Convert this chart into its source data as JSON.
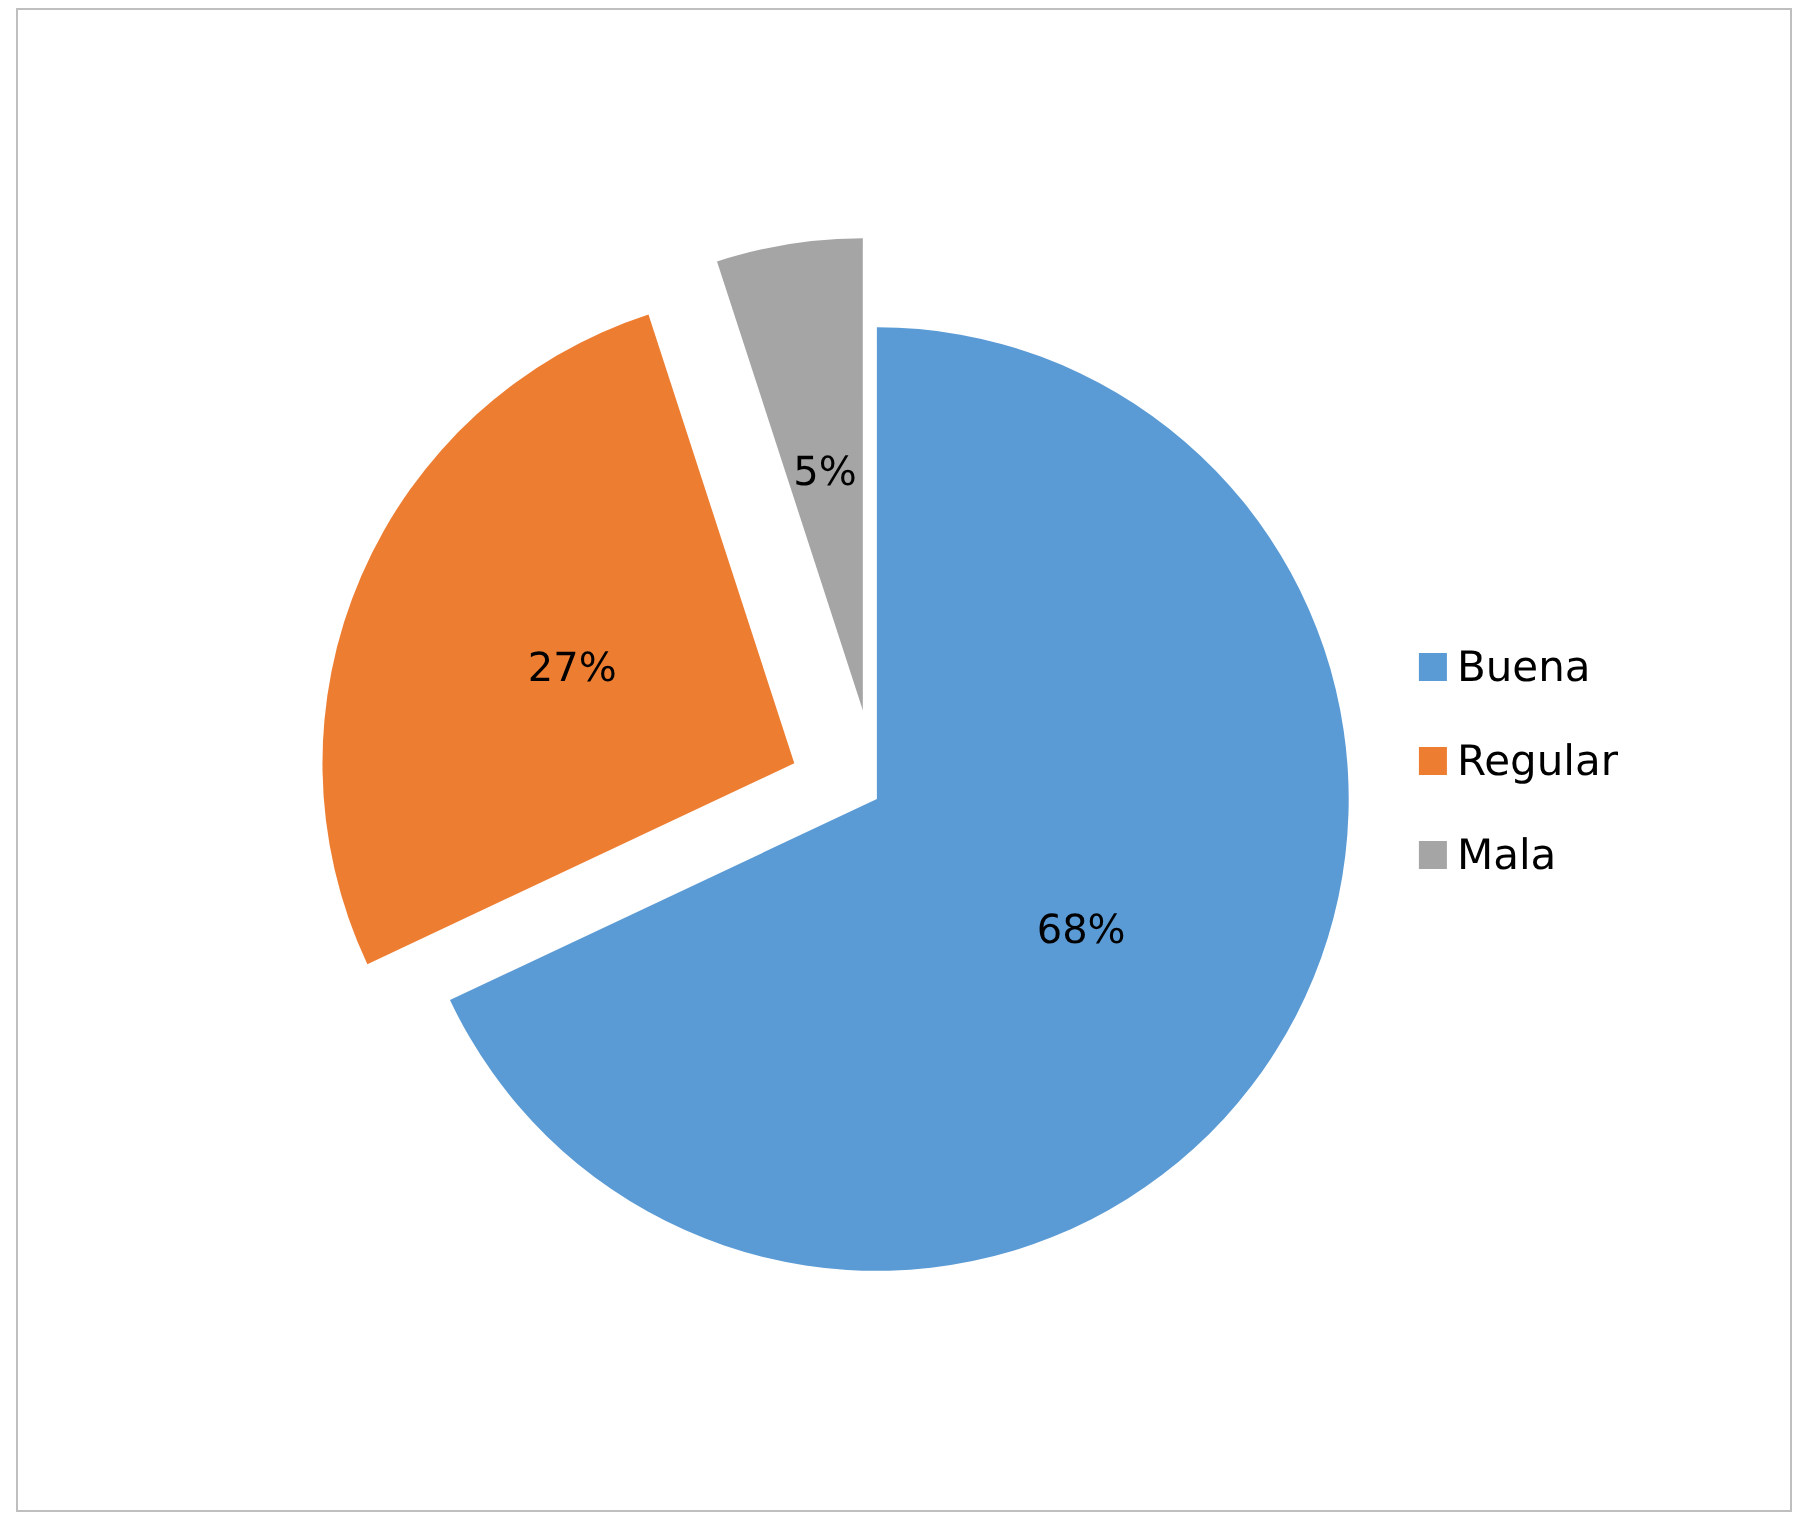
{
  "chart_data": {
    "type": "pie",
    "categories": [
      "Buena",
      "Regular",
      "Mala"
    ],
    "values": [
      68,
      27,
      5
    ],
    "colors": [
      "#5b9bd5",
      "#ed7d31",
      "#a5a5a5"
    ],
    "value_labels": [
      "68%",
      "27%",
      "5%"
    ],
    "legend": "right"
  }
}
